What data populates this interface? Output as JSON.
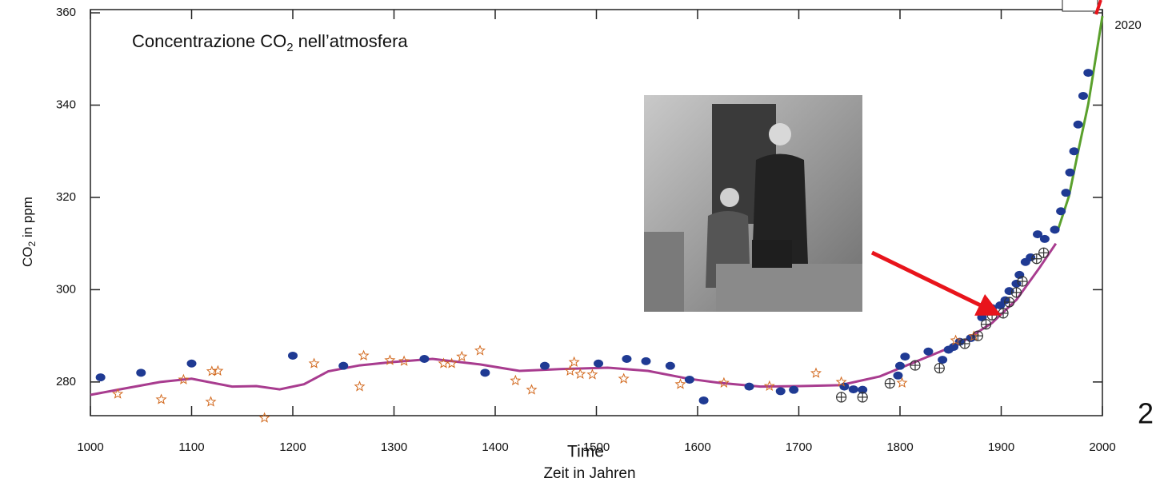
{
  "chart_data": {
    "type": "scatter",
    "title_parts": [
      "Concentrazione CO",
      "2",
      " nell’atmosfera"
    ],
    "ylabel_parts": [
      "CO",
      "2",
      " in ppm"
    ],
    "xlabel": "Zeit in Jahren",
    "xlabel_overlay": "Time",
    "annotations": [
      "2020",
      "2"
    ],
    "xlim": [
      1000,
      2000
    ],
    "xticks": [
      1000,
      1100,
      1200,
      1300,
      1400,
      1500,
      1600,
      1700,
      1800,
      1900,
      2000
    ],
    "ylim": [
      272.7,
      360.7
    ],
    "yticks": [
      280,
      300,
      320,
      340,
      360
    ],
    "series": [
      {
        "kind": "line",
        "color": "#a83c8f",
        "x": [
          1000,
          1029,
          1069,
          1100,
          1140,
          1164,
          1187,
          1211,
          1235,
          1266,
          1298,
          1338,
          1385,
          1424,
          1464,
          1511,
          1551,
          1591,
          1622,
          1662,
          1701,
          1741,
          1780,
          1820,
          1859,
          1891,
          1915,
          1938,
          1954
        ],
        "values": [
          277.2,
          278.4,
          280,
          280.7,
          279,
          279.1,
          278.4,
          279.5,
          282.3,
          283.6,
          284.3,
          285,
          283.8,
          282.4,
          282.8,
          283.1,
          282.4,
          280.7,
          279.8,
          279,
          279.1,
          279.3,
          281.2,
          284.8,
          288.3,
          292.8,
          297.8,
          304.8,
          310
        ]
      },
      {
        "kind": "line",
        "color": "#5aa02c",
        "x": [
          1956,
          1967,
          1976,
          1986,
          1995,
          2000
        ],
        "values": [
          312.9,
          320.3,
          329.9,
          340.2,
          352.4,
          359.3
        ]
      },
      {
        "kind": "dot",
        "color": "#1f3a93",
        "x": [
          1010,
          1050,
          1100,
          1200,
          1250,
          1330,
          1390,
          1449,
          1502,
          1530,
          1549,
          1573,
          1592,
          1606,
          1651,
          1682,
          1695,
          1745,
          1754,
          1763,
          1798,
          1800,
          1805,
          1828,
          1842,
          1848,
          1853,
          1859,
          1870,
          1881,
          1891,
          1899,
          1904,
          1908,
          1915,
          1918,
          1924,
          1929,
          1936,
          1943,
          1953,
          1959,
          1964,
          1968,
          1972,
          1976,
          1981,
          1986
        ],
        "values": [
          281,
          282,
          284,
          285.7,
          283.5,
          285,
          282,
          283.5,
          284,
          285,
          284.5,
          283.5,
          280.5,
          276,
          279,
          278,
          278.3,
          279,
          278.4,
          278.3,
          281.4,
          283.5,
          285.5,
          286.6,
          284.8,
          287,
          287.6,
          288.7,
          289.5,
          294,
          296,
          296.6,
          297.7,
          299.7,
          301.3,
          303.2,
          306,
          307,
          312,
          311,
          313,
          317,
          321,
          325.4,
          330,
          335.8,
          342,
          347
        ]
      },
      {
        "kind": "star",
        "color": "#d2691e",
        "x": [
          1027,
          1070,
          1092,
          1119,
          1120,
          1126,
          1172,
          1221,
          1266,
          1270,
          1296,
          1310,
          1349,
          1357,
          1367,
          1385,
          1420,
          1436,
          1474,
          1478,
          1484,
          1496,
          1527,
          1583,
          1626,
          1671,
          1717,
          1742,
          1802,
          1855,
          1873
        ],
        "values": [
          277.4,
          276.2,
          280.5,
          275.7,
          282.3,
          282.4,
          272.2,
          284,
          279,
          285.7,
          284.7,
          284.5,
          284,
          284,
          285.5,
          286.8,
          280.3,
          278.3,
          282.4,
          284.3,
          281.7,
          281.6,
          280.7,
          279.5,
          279.8,
          279.1,
          281.9,
          280,
          279.8,
          289,
          289.9
        ]
      },
      {
        "kind": "cross",
        "color": "#333333",
        "x": [
          1742,
          1763,
          1790,
          1815,
          1839,
          1864,
          1877,
          1885,
          1891,
          1902,
          1908,
          1915,
          1921,
          1935,
          1942
        ],
        "values": [
          276.7,
          276.7,
          279.7,
          283.6,
          283,
          288.3,
          290,
          292.5,
          294.5,
          294.9,
          297.3,
          299.4,
          301.8,
          306.7,
          308
        ]
      }
    ]
  }
}
